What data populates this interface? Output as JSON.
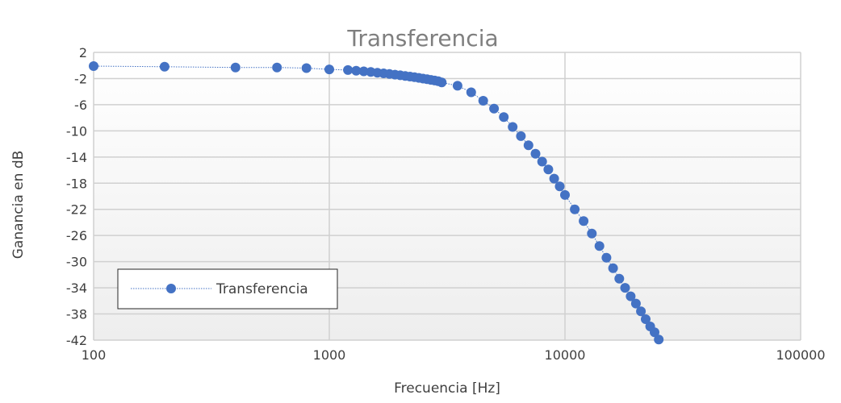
{
  "chart_data": {
    "type": "scatter",
    "title": "Transferencia",
    "xlabel": "Frecuencia [Hz]",
    "ylabel": "Ganancia en dB",
    "xscale": "log",
    "xlim": [
      100,
      100000
    ],
    "ylim": [
      -42,
      2
    ],
    "x_ticks": [
      "100",
      "1000",
      "10000",
      "100000"
    ],
    "y_ticks": [
      "2",
      "-2",
      "-6",
      "-10",
      "-14",
      "-18",
      "-22",
      "-26",
      "-30",
      "-34",
      "-38",
      "-42"
    ],
    "grid": true,
    "legend": "bottom-left",
    "series_color": "#4472c4",
    "series": [
      {
        "name": "Transferencia",
        "x": [
          100,
          200,
          400,
          600,
          800,
          1000,
          1200,
          1300,
          1400,
          1500,
          1600,
          1700,
          1800,
          1900,
          2000,
          2100,
          2200,
          2300,
          2400,
          2500,
          2600,
          2700,
          2800,
          2900,
          3000,
          3500,
          4000,
          4500,
          5000,
          5500,
          6000,
          6500,
          7000,
          7500,
          8000,
          8500,
          9000,
          9500,
          10000,
          11000,
          12000,
          13000,
          14000,
          15000,
          16000,
          17000,
          18000,
          19000,
          20000,
          21000,
          22000,
          23000,
          24000,
          25000
        ],
        "y": [
          -0.1,
          -0.2,
          -0.3,
          -0.3,
          -0.4,
          -0.6,
          -0.7,
          -0.8,
          -0.9,
          -1.0,
          -1.1,
          -1.2,
          -1.3,
          -1.4,
          -1.5,
          -1.6,
          -1.7,
          -1.8,
          -1.9,
          -2.0,
          -2.1,
          -2.2,
          -2.3,
          -2.4,
          -2.6,
          -3.1,
          -4.1,
          -5.4,
          -6.6,
          -7.9,
          -9.4,
          -10.8,
          -12.2,
          -13.5,
          -14.7,
          -15.9,
          -17.3,
          -18.5,
          -19.8,
          -22.0,
          -23.8,
          -25.7,
          -27.6,
          -29.4,
          -31.0,
          -32.6,
          -34.0,
          -35.3,
          -36.4,
          -37.6,
          -38.8,
          -39.9,
          -40.8,
          -41.9
        ]
      }
    ]
  }
}
